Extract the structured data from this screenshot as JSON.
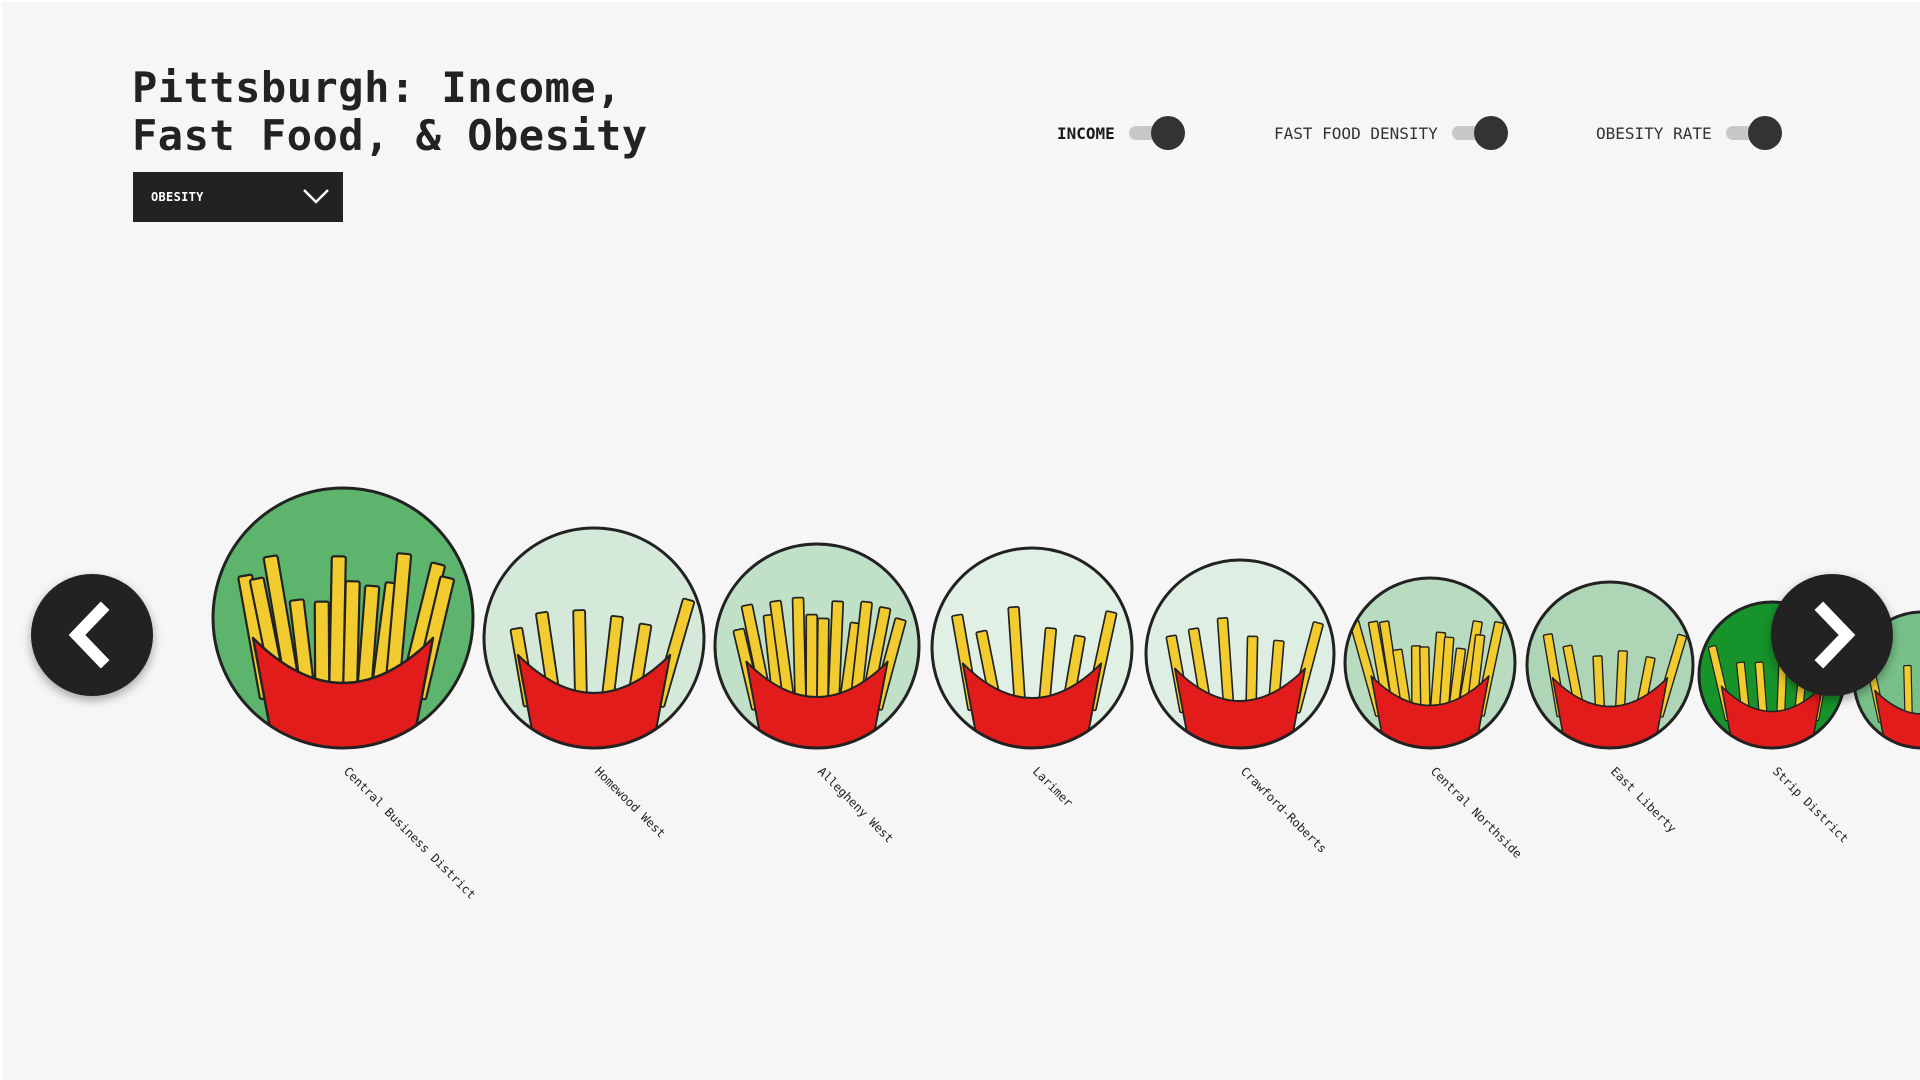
{
  "header": {
    "title_line1": "Pittsburgh: Income,",
    "title_line2": "Fast Food, & Obesity"
  },
  "dropdown": {
    "selected": "OBESITY",
    "icon": "chevron-down-icon"
  },
  "toggles": [
    {
      "label": "INCOME",
      "on": true,
      "active": true
    },
    {
      "label": "FAST FOOD DENSITY",
      "on": true,
      "active": false
    },
    {
      "label": "OBESITY RATE",
      "on": true,
      "active": false
    }
  ],
  "nav": {
    "prev_icon": "chevron-left-icon",
    "next_icon": "chevron-right-icon"
  },
  "colors": {
    "background": "#f6f6f6",
    "dark": "#222222",
    "fry_yellow": "#f2cc2e",
    "box_red": "#e21b1b"
  },
  "neighborhoods": [
    {
      "name": "Central Business District",
      "fill": "#5db46d",
      "fries": 12
    },
    {
      "name": "Homewood West",
      "fill": "#d4e9da",
      "fries": 6
    },
    {
      "name": "Allegheny West",
      "fill": "#c1e0c8",
      "fries": 12
    },
    {
      "name": "Larimer",
      "fill": "#e1f0e4",
      "fries": 6
    },
    {
      "name": "Crawford-Roberts",
      "fill": "#dfeee2",
      "fries": 6
    },
    {
      "name": "Central Northside",
      "fill": "#b9dcc1",
      "fries": 12
    },
    {
      "name": "East Liberty",
      "fill": "#aed6b6",
      "fries": 6
    },
    {
      "name": "Strip District",
      "fill": "#17932b",
      "fries": 6
    },
    {
      "name": "",
      "fill": "#78c08a",
      "fries": 4
    }
  ]
}
